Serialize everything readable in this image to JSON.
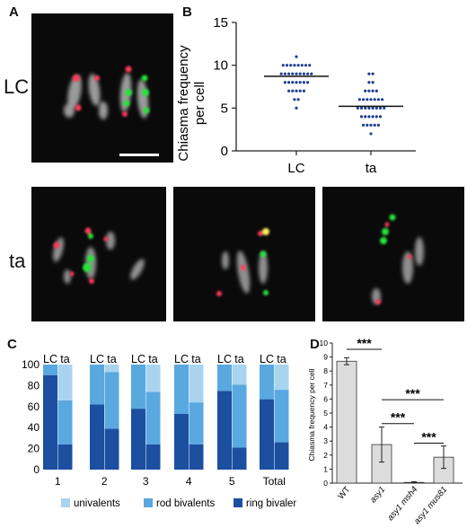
{
  "panels": {
    "a": "A",
    "b": "B",
    "c": "C",
    "d": "D"
  },
  "row_labels": {
    "lc": "LC",
    "ta": "ta"
  },
  "colors": {
    "chromatin": "#bdbdbd",
    "red_foci": "#ff3b5a",
    "green_foci": "#27e43a",
    "yellow_foci": "#ffee55",
    "scatter_dot": "#1f3f8f",
    "univalents": "#a9d4f0",
    "rod_bivalents": "#5aa8e0",
    "ring_bivalents": "#1c4fa0",
    "bar_gray": "#dddddd"
  },
  "chart_data": [
    {
      "id": "B",
      "type": "scatter",
      "ylabel": "Chiasma frequency\nper cell",
      "categories": [
        "LC",
        "ta"
      ],
      "ylim": [
        0,
        15
      ],
      "yticks": [
        0,
        5,
        10,
        15
      ],
      "series": [
        {
          "category": "LC",
          "mean": 8.7,
          "counts": [
            [
              5,
              1
            ],
            [
              6,
              2
            ],
            [
              7,
              5
            ],
            [
              8,
              7
            ],
            [
              9,
              9
            ],
            [
              10,
              8
            ],
            [
              11,
              1
            ]
          ]
        },
        {
          "category": "ta",
          "mean": 5.2,
          "counts": [
            [
              2,
              1
            ],
            [
              3,
              5
            ],
            [
              4,
              6
            ],
            [
              5,
              8
            ],
            [
              6,
              7
            ],
            [
              7,
              4
            ],
            [
              8,
              2
            ],
            [
              9,
              2
            ]
          ]
        }
      ]
    },
    {
      "id": "C",
      "type": "bar",
      "stacked": true,
      "groups": [
        "1",
        "2",
        "3",
        "4",
        "5",
        "Total"
      ],
      "group_headers": [
        "LC",
        "ta"
      ],
      "ylim": [
        0,
        100
      ],
      "yticks": [
        0,
        20,
        40,
        60,
        80,
        100
      ],
      "legend_position": "bottom",
      "legend": [
        "univalents",
        "rod bivalents",
        "ring bivalents"
      ],
      "data": {
        "LC": {
          "ring bivalents": [
            90,
            62,
            58,
            53,
            75,
            67
          ],
          "rod bivalents": [
            10,
            38,
            42,
            47,
            25,
            33
          ],
          "univalents": [
            0,
            0,
            0,
            0,
            0,
            0
          ]
        },
        "ta": {
          "ring bivalents": [
            24,
            39,
            24,
            24,
            21,
            26
          ],
          "rod bivalents": [
            42,
            54,
            50,
            40,
            60,
            50
          ],
          "univalents": [
            34,
            7,
            26,
            36,
            19,
            24
          ]
        }
      }
    },
    {
      "id": "D",
      "type": "bar",
      "ylabel": "Chiasma frequency per cell",
      "categories": [
        "WT",
        "asy1",
        "asy1 msh4",
        "asy1 mus81"
      ],
      "values": [
        8.7,
        2.75,
        0.05,
        1.85
      ],
      "errors": [
        0.25,
        1.25,
        0.05,
        0.8
      ],
      "ylim": [
        0,
        10
      ],
      "yticks": [
        0,
        1,
        2,
        3,
        4,
        5,
        6,
        7,
        8,
        9,
        10
      ],
      "significance": [
        {
          "from": 0,
          "to": 1,
          "label": "***"
        },
        {
          "from": 1,
          "to": 3,
          "label": "***"
        },
        {
          "from": 1,
          "to": 2,
          "label": "***"
        },
        {
          "from": 2,
          "to": 3,
          "label": "***"
        }
      ]
    }
  ]
}
